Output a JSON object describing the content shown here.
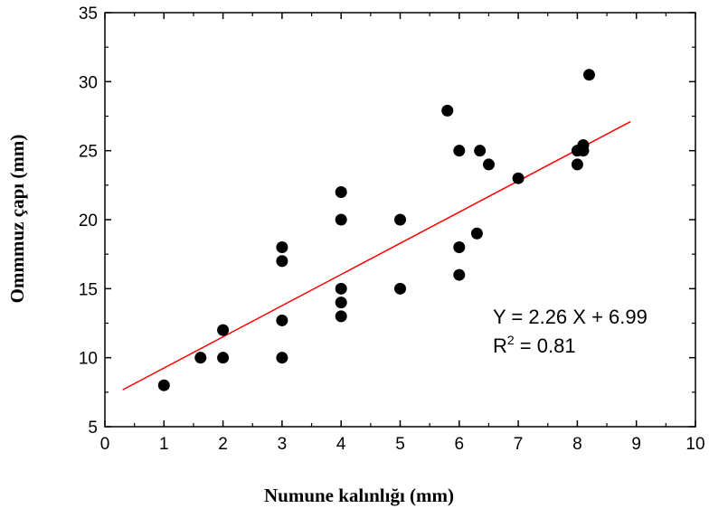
{
  "chart_data": {
    "type": "scatter",
    "xlabel": "Numune kalınlığı (mm)",
    "ylabel": "Ommmuz çapı (mm)",
    "xlim": [
      0,
      10
    ],
    "ylim": [
      5,
      35
    ],
    "xticks": [
      0,
      1,
      2,
      3,
      4,
      5,
      6,
      7,
      8,
      9,
      10
    ],
    "yticks": [
      5,
      10,
      15,
      20,
      25,
      30,
      35
    ],
    "grid": false,
    "points": [
      {
        "x": 1,
        "y": 8
      },
      {
        "x": 1.62,
        "y": 10
      },
      {
        "x": 2,
        "y": 10
      },
      {
        "x": 2,
        "y": 12
      },
      {
        "x": 3,
        "y": 10
      },
      {
        "x": 3,
        "y": 12.7
      },
      {
        "x": 3,
        "y": 17
      },
      {
        "x": 3,
        "y": 18
      },
      {
        "x": 4,
        "y": 13
      },
      {
        "x": 4,
        "y": 14
      },
      {
        "x": 4,
        "y": 15
      },
      {
        "x": 4,
        "y": 20
      },
      {
        "x": 4,
        "y": 22
      },
      {
        "x": 5,
        "y": 15
      },
      {
        "x": 5,
        "y": 20
      },
      {
        "x": 5.8,
        "y": 27.9
      },
      {
        "x": 6,
        "y": 16
      },
      {
        "x": 6,
        "y": 18
      },
      {
        "x": 6,
        "y": 25
      },
      {
        "x": 6.3,
        "y": 19
      },
      {
        "x": 6.35,
        "y": 25
      },
      {
        "x": 6.5,
        "y": 24
      },
      {
        "x": 7,
        "y": 23
      },
      {
        "x": 8,
        "y": 24
      },
      {
        "x": 8,
        "y": 25
      },
      {
        "x": 8.1,
        "y": 25
      },
      {
        "x": 8.1,
        "y": 25.4
      },
      {
        "x": 8.2,
        "y": 30.5
      }
    ],
    "fit": {
      "type": "linear",
      "slope": 2.26,
      "intercept": 6.99,
      "x_range": [
        0.3,
        8.9
      ],
      "color": "#ff0000",
      "equation_label": "Y = 2.26 X + 6.99",
      "r2_prefix": "R",
      "r2_sup": "2",
      "r2_suffix": " = 0.81"
    },
    "marker_color": "#000000"
  }
}
